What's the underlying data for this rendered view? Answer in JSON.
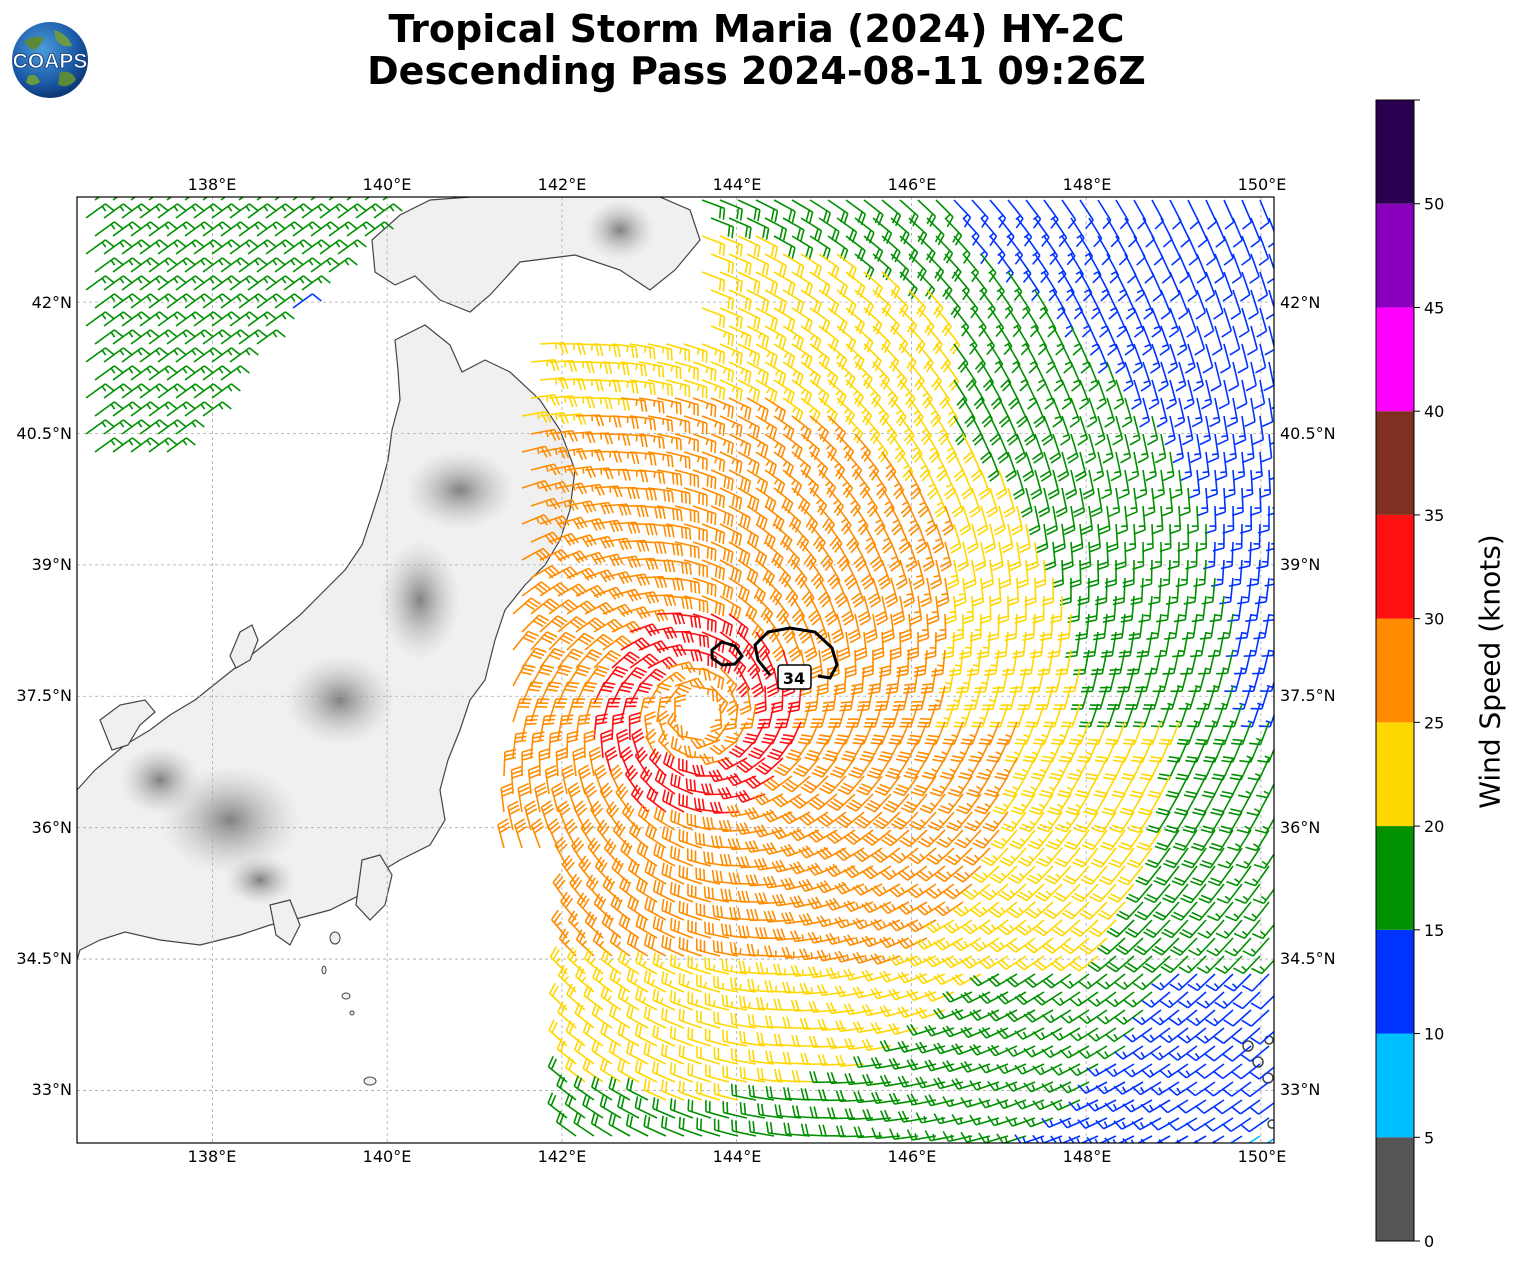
{
  "title": {
    "line1": "Tropical Storm Maria (2024) HY-2C",
    "line2": "Descending Pass 2024-08-11 09:26Z"
  },
  "logo": {
    "text": "COAPS"
  },
  "map": {
    "lon_range": [
      136.45,
      150.15
    ],
    "lat_range": [
      32.4,
      43.2
    ],
    "lon_ticks": [
      "138°E",
      "140°E",
      "142°E",
      "144°E",
      "146°E",
      "148°E",
      "150°E"
    ],
    "lat_ticks": [
      "42°N",
      "40.5°N",
      "39°N",
      "37.5°N",
      "36°N",
      "34.5°N",
      "33°N"
    ],
    "storm_center": {
      "lon": 143.55,
      "lat": 37.3
    },
    "contour_label": "34",
    "gridlines": true
  },
  "colorbar": {
    "label": "Wind Speed (knots)",
    "ticks": [
      "0",
      "5",
      "10",
      "15",
      "20",
      "25",
      "30",
      "35",
      "40",
      "45",
      "50"
    ],
    "bins": [
      {
        "min": 0,
        "max": 5,
        "color": "#555555"
      },
      {
        "min": 5,
        "max": 10,
        "color": "#00bfff"
      },
      {
        "min": 10,
        "max": 15,
        "color": "#0033ff"
      },
      {
        "min": 15,
        "max": 20,
        "color": "#009000"
      },
      {
        "min": 20,
        "max": 25,
        "color": "#ffd700"
      },
      {
        "min": 25,
        "max": 30,
        "color": "#ff8c00"
      },
      {
        "min": 30,
        "max": 35,
        "color": "#ff1010"
      },
      {
        "min": 35,
        "max": 40,
        "color": "#803020"
      },
      {
        "min": 40,
        "max": 45,
        "color": "#ff00ff"
      },
      {
        "min": 45,
        "max": 50,
        "color": "#8800bb"
      },
      {
        "min": 50,
        "max": 55,
        "color": "#2a0050"
      }
    ]
  }
}
